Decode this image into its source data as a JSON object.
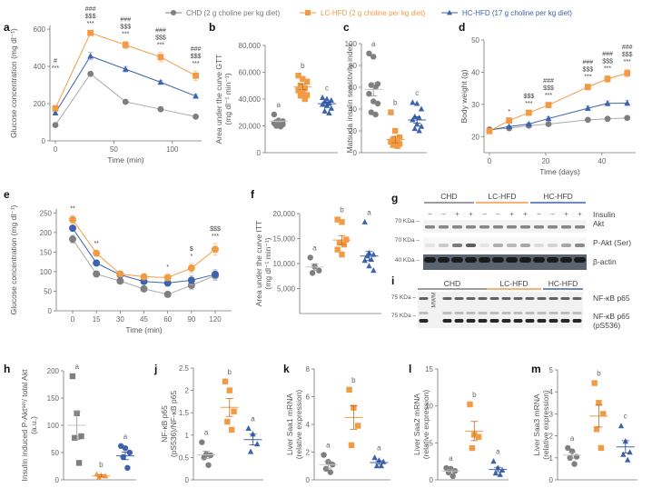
{
  "colors": {
    "chd": "#7f7f7f",
    "lc": "#f39a45",
    "hc": "#3d63ad",
    "axis": "#777777"
  },
  "legend": [
    {
      "key": "chd",
      "label": "CHD (2 g choline per kg diet)",
      "marker": "circle"
    },
    {
      "key": "lc",
      "label": "LC-HFD (2 g choline per kg diet)",
      "marker": "square"
    },
    {
      "key": "hc",
      "label": "HC-HFD (17 g choline per kg diet)",
      "marker": "triangle"
    }
  ],
  "chart_data": [
    {
      "id": "a",
      "type": "line",
      "panel_label": "a",
      "xlabel": "Time (min)",
      "ylabel": "Glucose concentration (mg dl⁻¹)",
      "xlim": [
        0,
        125
      ],
      "ylim": [
        0,
        620
      ],
      "xticks": [
        0,
        50,
        100
      ],
      "yticks": [
        0,
        200,
        400,
        600
      ],
      "x": [
        0,
        30,
        60,
        90,
        120
      ],
      "series": [
        {
          "key": "chd",
          "name": "CHD",
          "values": [
            85,
            360,
            210,
            170,
            130
          ],
          "err": [
            8,
            10,
            8,
            6,
            6
          ]
        },
        {
          "key": "hc",
          "name": "HC-HFD",
          "values": [
            150,
            455,
            385,
            315,
            240
          ],
          "err": [
            8,
            20,
            15,
            10,
            10
          ]
        },
        {
          "key": "lc",
          "name": "LC-HFD",
          "values": [
            175,
            580,
            515,
            450,
            350
          ],
          "err": [
            10,
            10,
            20,
            25,
            25
          ]
        }
      ],
      "annotations": [
        {
          "x": 0,
          "lines": [
            "#",
            "***"
          ]
        },
        {
          "x": 30,
          "lines": [
            "###",
            "$$$",
            "***"
          ]
        },
        {
          "x": 60,
          "lines": [
            "###",
            "$$$",
            "***"
          ]
        },
        {
          "x": 90,
          "lines": [
            "###",
            "$$$",
            "***"
          ]
        },
        {
          "x": 120,
          "lines": [
            "###",
            "$$$",
            "***"
          ]
        }
      ]
    },
    {
      "id": "b",
      "type": "scatter",
      "panel_label": "b",
      "ylabel": "Area under the curve GTT (mg dl⁻¹ min⁻¹)",
      "ylim": [
        0,
        80000
      ],
      "yticks": [
        0,
        20000,
        40000,
        60000,
        80000
      ],
      "ytick_labels": [
        "0",
        "20,000",
        "40,000",
        "60,000",
        "80,000"
      ],
      "groups": [
        {
          "key": "chd",
          "letter": "a",
          "mean": 23500,
          "sem": 1000,
          "points": [
            28500,
            24000,
            23500,
            23000,
            22500,
            22000,
            21500,
            21000,
            20000,
            19500
          ]
        },
        {
          "key": "lc",
          "letter": "b",
          "mean": 49000,
          "sem": 2000,
          "points": [
            57500,
            55000,
            53000,
            50000,
            48000,
            46500,
            44000,
            43000,
            42500,
            40000
          ]
        },
        {
          "key": "hc",
          "letter": "c",
          "mean": 36500,
          "sem": 1200,
          "points": [
            41000,
            40000,
            39000,
            38000,
            37000,
            36000,
            35000,
            33000,
            31000,
            29500
          ]
        }
      ]
    },
    {
      "id": "c",
      "type": "scatter",
      "panel_label": "c",
      "ylabel": "Matsuda insulin sensitivity index",
      "ylim": [
        0,
        100
      ],
      "yticks": [
        0,
        20,
        40,
        60,
        80,
        100
      ],
      "ytick_labels": [
        "0",
        "20",
        "40",
        "60",
        "80",
        "100"
      ],
      "groups": [
        {
          "key": "chd",
          "letter": "a",
          "mean": 58,
          "sem": 6,
          "points": [
            91,
            88,
            63,
            62,
            60,
            54,
            47,
            45,
            37,
            35
          ]
        },
        {
          "key": "lc",
          "letter": "b",
          "mean": 12,
          "sem": 3,
          "points": [
            37,
            20,
            14,
            12,
            11,
            10,
            9,
            8,
            7,
            6
          ]
        },
        {
          "key": "hc",
          "letter": "c",
          "mean": 30,
          "sem": 3,
          "points": [
            46,
            45,
            40,
            33,
            32,
            30,
            26,
            24,
            22,
            20
          ]
        }
      ]
    },
    {
      "id": "d",
      "type": "line",
      "panel_label": "d",
      "xlabel": "Time (days)",
      "ylabel": "Body weight (g)",
      "xlim": [
        0,
        52
      ],
      "ylim": [
        15,
        50
      ],
      "xticks": [
        0,
        20,
        40
      ],
      "yticks": [
        20,
        30,
        40,
        50
      ],
      "x": [
        0,
        7,
        14,
        21,
        35,
        42,
        49
      ],
      "series": [
        {
          "key": "chd",
          "name": "CHD",
          "values": [
            22.2,
            22.6,
            23.4,
            23.9,
            25.2,
            25.5,
            25.8
          ],
          "err": [
            0.3,
            0.3,
            0.3,
            0.3,
            0.4,
            0.4,
            0.4
          ]
        },
        {
          "key": "hc",
          "name": "HC-HFD",
          "values": [
            22.0,
            23.1,
            23.9,
            25.6,
            28.8,
            30.3,
            30.4
          ],
          "err": [
            0.3,
            0.3,
            0.4,
            0.5,
            0.7,
            0.8,
            0.8
          ]
        },
        {
          "key": "lc",
          "name": "LC-HFD",
          "values": [
            21.7,
            25.0,
            27.4,
            29.8,
            35.4,
            37.9,
            39.7
          ],
          "err": [
            0.3,
            0.5,
            0.6,
            0.7,
            0.9,
            1.0,
            1.2
          ]
        }
      ],
      "annotations": [
        {
          "x": 7,
          "lines": [
            "*"
          ]
        },
        {
          "x": 14,
          "lines": [
            "$$$",
            "***"
          ]
        },
        {
          "x": 21,
          "lines": [
            "###",
            "$$$",
            "***"
          ]
        },
        {
          "x": 35,
          "lines": [
            "###",
            "$$$",
            "***"
          ]
        },
        {
          "x": 42,
          "lines": [
            "###",
            "$$$",
            "***"
          ]
        },
        {
          "x": 49,
          "lines": [
            "###",
            "$$$",
            "***"
          ]
        }
      ]
    },
    {
      "id": "e",
      "type": "line",
      "panel_label": "e",
      "xlabel": "Time (min)",
      "ylabel": "Glucose concentration (mg dl⁻¹)",
      "categorical_x": true,
      "ylim": [
        0,
        260
      ],
      "yticks": [
        0,
        50,
        100,
        150,
        200,
        250
      ],
      "x": [
        0,
        15,
        30,
        45,
        60,
        90,
        120
      ],
      "series": [
        {
          "key": "chd",
          "name": "CHD",
          "values": [
            183,
            94,
            76,
            56,
            42,
            65,
            90
          ],
          "err": [
            10,
            5,
            5,
            5,
            6,
            10,
            12
          ]
        },
        {
          "key": "hc",
          "name": "HC-HFD",
          "values": [
            211,
            122,
            92,
            75,
            71,
            78,
            93
          ],
          "err": [
            6,
            6,
            5,
            6,
            8,
            12,
            12
          ]
        },
        {
          "key": "lc",
          "name": "LC-HFD",
          "values": [
            233,
            147,
            94,
            87,
            85,
            109,
            157
          ],
          "err": [
            10,
            6,
            5,
            6,
            8,
            12,
            15
          ]
        }
      ],
      "annotations": [
        {
          "x": 0,
          "lines": [
            "**"
          ]
        },
        {
          "x": 15,
          "lines": [
            "**"
          ]
        },
        {
          "x": 60,
          "lines": [
            "*"
          ]
        },
        {
          "x": 90,
          "lines": [
            "$",
            "*"
          ]
        },
        {
          "x": 120,
          "lines": [
            "$$$",
            "***"
          ]
        }
      ]
    },
    {
      "id": "f",
      "type": "scatter",
      "panel_label": "f",
      "ylabel": "Area under the curve ITT (mg dl⁻¹ min⁻¹)",
      "ylim": [
        0,
        20000
      ],
      "yticks": [
        5000,
        10000,
        15000,
        20000
      ],
      "ytick_labels": [
        "5,000",
        "10,000",
        "15,000",
        "20,000"
      ],
      "groups": [
        {
          "key": "chd",
          "letter": "a",
          "mean": 9300,
          "sem": 650,
          "points": [
            11200,
            9400,
            8600,
            8100
          ]
        },
        {
          "key": "lc",
          "letter": "b",
          "mean": 14700,
          "sem": 900,
          "points": [
            18800,
            18300,
            14800,
            14200,
            13800,
            12800,
            11800
          ]
        },
        {
          "key": "hc",
          "letter": "a",
          "mean": 11500,
          "sem": 900,
          "points": [
            18300,
            12100,
            11800,
            11500,
            10800,
            10600,
            9500,
            8600
          ]
        }
      ]
    },
    {
      "id": "h",
      "type": "scatter",
      "panel_label": "h",
      "ylabel": "Insulin induced P-Aktˢᵉʳ/ total Akt (a.u.)",
      "ylim": [
        0,
        200
      ],
      "yticks": [
        0,
        50,
        100,
        150,
        200
      ],
      "ytick_labels": [
        "0",
        "50",
        "100",
        "150",
        "200"
      ],
      "groups": [
        {
          "key": "chd",
          "marker": "square",
          "letter": "a",
          "mean": 100,
          "sem": 26,
          "points": [
            190,
            122,
            80,
            77,
            31
          ]
        },
        {
          "key": "lc",
          "marker": "triangle",
          "letter": "b",
          "mean": 7,
          "sem": 2,
          "points": [
            10,
            8,
            7,
            4
          ]
        },
        {
          "key": "hc",
          "marker": "circle",
          "letter": "a",
          "mean": 44,
          "sem": 7,
          "points": [
            62,
            58,
            50,
            42,
            22
          ]
        }
      ]
    },
    {
      "id": "j",
      "type": "scatter",
      "panel_label": "j",
      "ylabel": "NF-κB p65 (pS536)/NF-κB p65",
      "ylim": [
        0,
        2.5
      ],
      "yticks": [
        0,
        0.5,
        1,
        1.5,
        2,
        2.5
      ],
      "ytick_labels": [
        "0",
        "0.5",
        "1",
        "1.5",
        "2",
        "2.5"
      ],
      "groups": [
        {
          "key": "chd",
          "letter": "a",
          "mean": 0.56,
          "sem": 0.08,
          "points": [
            0.84,
            0.57,
            0.55,
            0.5,
            0.33
          ]
        },
        {
          "key": "lc",
          "letter": "b",
          "mean": 1.62,
          "sem": 0.2,
          "points": [
            2.2,
            2.0,
            1.53,
            1.3,
            1.12
          ]
        },
        {
          "key": "hc",
          "letter": "a",
          "mean": 0.9,
          "sem": 0.12,
          "points": [
            1.15,
            1.02,
            0.8,
            0.63
          ]
        }
      ]
    },
    {
      "id": "k",
      "type": "scatter",
      "panel_label": "k",
      "ylabel": "Liver Saa1 mRNA (relative expression)",
      "ylim": [
        0,
        8
      ],
      "yticks": [
        0,
        2,
        4,
        6,
        8
      ],
      "ytick_labels": [
        "0",
        "2",
        "4",
        "6",
        "8"
      ],
      "groups": [
        {
          "key": "chd",
          "letter": "a",
          "mean": 1.1,
          "sem": 0.25,
          "points": [
            1.8,
            1.3,
            1.1,
            0.8,
            0.55
          ]
        },
        {
          "key": "lc",
          "letter": "b",
          "mean": 4.5,
          "sem": 0.85,
          "points": [
            6.5,
            5.2,
            3.9,
            2.5
          ]
        },
        {
          "key": "hc",
          "letter": "a",
          "mean": 1.25,
          "sem": 0.12,
          "points": [
            1.6,
            1.4,
            1.3,
            1.0,
            1.0
          ]
        }
      ]
    },
    {
      "id": "l",
      "type": "scatter",
      "panel_label": "l",
      "ylabel": "Liver Saa2 mRNA (relative expression)",
      "ylim": [
        0,
        15
      ],
      "yticks": [
        0,
        5,
        10,
        15
      ],
      "ytick_labels": [
        "0",
        "5",
        "10",
        "15"
      ],
      "groups": [
        {
          "key": "chd",
          "letter": "a",
          "mean": 1.2,
          "sem": 0.2,
          "points": [
            1.6,
            1.5,
            1.2,
            1.0,
            0.5
          ]
        },
        {
          "key": "lc",
          "letter": "b",
          "mean": 6.6,
          "sem": 1.3,
          "points": [
            10.2,
            6.1,
            5.8,
            4.3
          ]
        },
        {
          "key": "hc",
          "letter": "a",
          "mean": 1.4,
          "sem": 0.3,
          "points": [
            2.5,
            1.6,
            1.3,
            0.9,
            0.7
          ]
        }
      ]
    },
    {
      "id": "m",
      "type": "scatter",
      "panel_label": "m",
      "ylabel": "Liver Saa3 mRNA (relative expression)",
      "ylim": [
        0,
        5
      ],
      "yticks": [
        0,
        1,
        2,
        3,
        4,
        5
      ],
      "ytick_labels": [
        "0",
        "1",
        "2",
        "3",
        "4",
        "5"
      ],
      "groups": [
        {
          "key": "chd",
          "letter": "a",
          "mean": 1.12,
          "sem": 0.13,
          "points": [
            1.45,
            1.3,
            1.05,
            1.0,
            0.72
          ]
        },
        {
          "key": "lc",
          "letter": "b",
          "mean": 2.9,
          "sem": 0.5,
          "points": [
            4.4,
            3.5,
            3.0,
            2.3,
            1.45
          ]
        },
        {
          "key": "hc",
          "letter": "c",
          "mean": 1.5,
          "sem": 0.28,
          "points": [
            2.45,
            1.75,
            1.25,
            1.15,
            0.9
          ]
        }
      ]
    }
  ],
  "blot_g": {
    "panel_label": "g",
    "groups": [
      "CHD",
      "LC-HFD",
      "HC-HFD"
    ],
    "insulin_label": "Insulin",
    "insulin": [
      "–",
      "–",
      "+",
      "+",
      "–",
      "–",
      "+",
      "+",
      "–",
      "–",
      "+",
      "+"
    ],
    "rows": [
      {
        "kda": "70 KDa",
        "label": "Akt"
      },
      {
        "kda": "70 KDa",
        "label": "P-Akt (Ser)"
      },
      {
        "kda": "40 KDa",
        "label": "β-actin"
      }
    ]
  },
  "blot_i": {
    "panel_label": "i",
    "groups": [
      "CHD",
      "LC-HFD",
      "HC-HFD"
    ],
    "mwm_label": "MWM",
    "rows": [
      {
        "kda": "75 KDa",
        "label": "NF-κB p65"
      },
      {
        "kda": "75 KDa",
        "label": "NF-κB p65",
        "label2": "(pS536)"
      }
    ]
  }
}
